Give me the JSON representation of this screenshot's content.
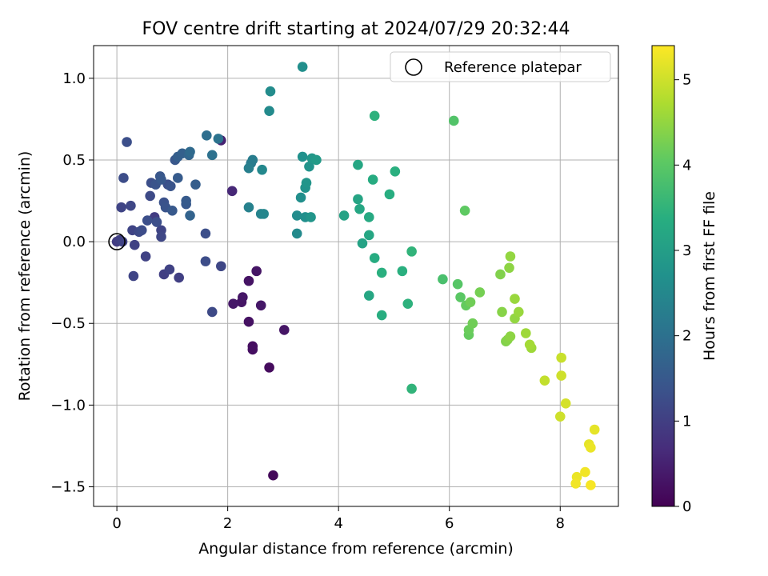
{
  "chart_data": {
    "type": "scatter",
    "title": "FOV centre drift starting at 2024/07/29 20:32:44",
    "xlabel": "Angular distance from reference (arcmin)",
    "ylabel": "Rotation from reference (arcmin)",
    "xlim": [
      -0.42,
      9.05
    ],
    "ylim": [
      -1.62,
      1.2
    ],
    "xticks": [
      0,
      2,
      4,
      6,
      8
    ],
    "xtick_labels": [
      "0",
      "2",
      "4",
      "6",
      "8"
    ],
    "yticks": [
      -1.5,
      -1.0,
      -0.5,
      0.0,
      0.5,
      1.0
    ],
    "ytick_labels": [
      "−1.5",
      "−1.0",
      "−0.5",
      "0.0",
      "0.5",
      "1.0"
    ],
    "grid": true,
    "legend": {
      "location": "upper right",
      "entries": [
        "Reference platepar"
      ]
    },
    "reference_point": {
      "x": 0,
      "y": 0,
      "label": "Reference platepar"
    },
    "colorbar": {
      "label": "Hours from first FF file",
      "colormap": "viridis",
      "range": [
        0,
        5.4
      ],
      "ticks": [
        0,
        1,
        2,
        3,
        4,
        5
      ],
      "tick_labels": [
        "0",
        "1",
        "2",
        "3",
        "4",
        "5"
      ]
    },
    "points": [
      {
        "x": 2.1,
        "y": -0.38,
        "c": 0.35
      },
      {
        "x": 2.25,
        "y": -0.37,
        "c": 0.3
      },
      {
        "x": 2.27,
        "y": -0.34,
        "c": 0.32
      },
      {
        "x": 2.38,
        "y": -0.24,
        "c": 0.28
      },
      {
        "x": 2.52,
        "y": -0.18,
        "c": 0.3
      },
      {
        "x": 2.6,
        "y": -0.39,
        "c": 0.33
      },
      {
        "x": 2.38,
        "y": -0.49,
        "c": 0.25
      },
      {
        "x": 2.45,
        "y": -0.64,
        "c": 0.2
      },
      {
        "x": 2.45,
        "y": -0.66,
        "c": 0.22
      },
      {
        "x": 2.75,
        "y": -0.77,
        "c": 0.15
      },
      {
        "x": 3.02,
        "y": -0.54,
        "c": 0.3
      },
      {
        "x": 2.82,
        "y": -1.43,
        "c": 0.1
      },
      {
        "x": 1.88,
        "y": 0.62,
        "c": 0.5
      },
      {
        "x": 2.08,
        "y": 0.31,
        "c": 0.6
      },
      {
        "x": 0.0,
        "y": 0.0,
        "c": 0.95
      },
      {
        "x": 0.05,
        "y": 0.01,
        "c": 1.0
      },
      {
        "x": 0.1,
        "y": 0.0,
        "c": 1.05
      },
      {
        "x": 0.08,
        "y": 0.21,
        "c": 1.1
      },
      {
        "x": 0.12,
        "y": 0.39,
        "c": 1.25
      },
      {
        "x": 0.18,
        "y": 0.61,
        "c": 1.3
      },
      {
        "x": 0.25,
        "y": 0.22,
        "c": 1.15
      },
      {
        "x": 0.28,
        "y": 0.07,
        "c": 1.1
      },
      {
        "x": 0.32,
        "y": -0.02,
        "c": 1.05
      },
      {
        "x": 0.4,
        "y": 0.06,
        "c": 1.2
      },
      {
        "x": 0.45,
        "y": 0.07,
        "c": 1.25
      },
      {
        "x": 0.3,
        "y": -0.21,
        "c": 1.1
      },
      {
        "x": 0.52,
        "y": -0.09,
        "c": 1.05
      },
      {
        "x": 0.55,
        "y": 0.13,
        "c": 1.3
      },
      {
        "x": 0.6,
        "y": 0.28,
        "c": 1.2
      },
      {
        "x": 0.62,
        "y": 0.36,
        "c": 1.3
      },
      {
        "x": 0.68,
        "y": 0.15,
        "c": 0.95
      },
      {
        "x": 0.7,
        "y": 0.35,
        "c": 1.4
      },
      {
        "x": 0.72,
        "y": 0.12,
        "c": 1.3
      },
      {
        "x": 0.78,
        "y": 0.4,
        "c": 1.45
      },
      {
        "x": 0.8,
        "y": 0.38,
        "c": 1.5
      },
      {
        "x": 0.8,
        "y": 0.03,
        "c": 1.15
      },
      {
        "x": 0.8,
        "y": 0.07,
        "c": 1.1
      },
      {
        "x": 0.85,
        "y": 0.24,
        "c": 1.35
      },
      {
        "x": 0.85,
        "y": -0.2,
        "c": 1.0
      },
      {
        "x": 0.88,
        "y": 0.21,
        "c": 1.4
      },
      {
        "x": 0.92,
        "y": 0.35,
        "c": 1.3
      },
      {
        "x": 0.95,
        "y": -0.17,
        "c": 1.05
      },
      {
        "x": 0.97,
        "y": 0.34,
        "c": 1.4
      },
      {
        "x": 1.0,
        "y": 0.19,
        "c": 1.5
      },
      {
        "x": 1.05,
        "y": 0.5,
        "c": 1.45
      },
      {
        "x": 1.1,
        "y": 0.39,
        "c": 1.55
      },
      {
        "x": 1.1,
        "y": 0.52,
        "c": 1.6
      },
      {
        "x": 1.12,
        "y": -0.22,
        "c": 1.0
      },
      {
        "x": 1.18,
        "y": 0.54,
        "c": 1.65
      },
      {
        "x": 1.25,
        "y": 0.25,
        "c": 1.55
      },
      {
        "x": 1.25,
        "y": 0.23,
        "c": 1.5
      },
      {
        "x": 1.3,
        "y": 0.53,
        "c": 1.75
      },
      {
        "x": 1.32,
        "y": 0.55,
        "c": 1.85
      },
      {
        "x": 1.32,
        "y": 0.16,
        "c": 1.7
      },
      {
        "x": 1.42,
        "y": 0.35,
        "c": 1.6
      },
      {
        "x": 1.6,
        "y": 0.05,
        "c": 1.3
      },
      {
        "x": 1.6,
        "y": -0.12,
        "c": 1.25
      },
      {
        "x": 1.62,
        "y": 0.65,
        "c": 1.95
      },
      {
        "x": 1.72,
        "y": 0.53,
        "c": 2.0
      },
      {
        "x": 1.72,
        "y": -0.43,
        "c": 1.2
      },
      {
        "x": 1.83,
        "y": 0.63,
        "c": 2.05
      },
      {
        "x": 1.88,
        "y": -0.15,
        "c": 1.15
      },
      {
        "x": 2.38,
        "y": 0.45,
        "c": 2.3
      },
      {
        "x": 2.42,
        "y": 0.48,
        "c": 2.2
      },
      {
        "x": 2.45,
        "y": 0.5,
        "c": 2.25
      },
      {
        "x": 2.38,
        "y": 0.21,
        "c": 2.35
      },
      {
        "x": 2.6,
        "y": 0.17,
        "c": 2.4
      },
      {
        "x": 2.65,
        "y": 0.17,
        "c": 2.45
      },
      {
        "x": 2.62,
        "y": 0.44,
        "c": 2.5
      },
      {
        "x": 2.75,
        "y": 0.8,
        "c": 2.55
      },
      {
        "x": 2.77,
        "y": 0.92,
        "c": 2.6
      },
      {
        "x": 3.35,
        "y": 1.07,
        "c": 2.65
      },
      {
        "x": 3.25,
        "y": 0.16,
        "c": 2.6
      },
      {
        "x": 3.25,
        "y": 0.05,
        "c": 2.55
      },
      {
        "x": 3.32,
        "y": 0.27,
        "c": 2.65
      },
      {
        "x": 3.35,
        "y": 0.52,
        "c": 2.7
      },
      {
        "x": 3.4,
        "y": 0.15,
        "c": 2.65
      },
      {
        "x": 3.4,
        "y": 0.33,
        "c": 2.75
      },
      {
        "x": 3.42,
        "y": 0.36,
        "c": 2.8
      },
      {
        "x": 3.47,
        "y": 0.46,
        "c": 2.75
      },
      {
        "x": 3.5,
        "y": 0.15,
        "c": 2.8
      },
      {
        "x": 3.52,
        "y": 0.51,
        "c": 2.85
      },
      {
        "x": 3.6,
        "y": 0.5,
        "c": 2.9
      },
      {
        "x": 4.1,
        "y": 0.16,
        "c": 3.1
      },
      {
        "x": 4.35,
        "y": 0.47,
        "c": 3.2
      },
      {
        "x": 4.35,
        "y": 0.26,
        "c": 3.15
      },
      {
        "x": 4.38,
        "y": 0.2,
        "c": 3.2
      },
      {
        "x": 4.43,
        "y": -0.01,
        "c": 3.1
      },
      {
        "x": 4.55,
        "y": 0.04,
        "c": 3.2
      },
      {
        "x": 4.55,
        "y": 0.15,
        "c": 3.25
      },
      {
        "x": 4.62,
        "y": 0.38,
        "c": 3.3
      },
      {
        "x": 4.65,
        "y": 0.77,
        "c": 3.45
      },
      {
        "x": 4.65,
        "y": -0.1,
        "c": 3.3
      },
      {
        "x": 4.55,
        "y": -0.33,
        "c": 3.2
      },
      {
        "x": 4.78,
        "y": -0.19,
        "c": 3.4
      },
      {
        "x": 4.78,
        "y": -0.45,
        "c": 3.35
      },
      {
        "x": 4.92,
        "y": 0.29,
        "c": 3.35
      },
      {
        "x": 5.02,
        "y": 0.43,
        "c": 3.4
      },
      {
        "x": 5.15,
        "y": -0.18,
        "c": 3.4
      },
      {
        "x": 5.25,
        "y": -0.38,
        "c": 3.45
      },
      {
        "x": 5.32,
        "y": -0.06,
        "c": 3.5
      },
      {
        "x": 5.32,
        "y": -0.9,
        "c": 3.5
      },
      {
        "x": 5.88,
        "y": -0.23,
        "c": 3.8
      },
      {
        "x": 6.08,
        "y": 0.74,
        "c": 3.9
      },
      {
        "x": 6.15,
        "y": -0.26,
        "c": 3.95
      },
      {
        "x": 6.2,
        "y": -0.34,
        "c": 4.0
      },
      {
        "x": 6.28,
        "y": 0.19,
        "c": 4.05
      },
      {
        "x": 6.3,
        "y": -0.39,
        "c": 4.1
      },
      {
        "x": 6.35,
        "y": -0.54,
        "c": 4.15
      },
      {
        "x": 6.35,
        "y": -0.57,
        "c": 4.1
      },
      {
        "x": 6.38,
        "y": -0.37,
        "c": 4.2
      },
      {
        "x": 6.42,
        "y": -0.5,
        "c": 4.2
      },
      {
        "x": 6.55,
        "y": -0.31,
        "c": 4.25
      },
      {
        "x": 6.92,
        "y": -0.2,
        "c": 4.35
      },
      {
        "x": 6.95,
        "y": -0.43,
        "c": 4.4
      },
      {
        "x": 7.02,
        "y": -0.61,
        "c": 4.35
      },
      {
        "x": 7.05,
        "y": -0.6,
        "c": 4.4
      },
      {
        "x": 7.08,
        "y": -0.16,
        "c": 4.45
      },
      {
        "x": 7.1,
        "y": -0.09,
        "c": 4.5
      },
      {
        "x": 7.1,
        "y": -0.58,
        "c": 4.45
      },
      {
        "x": 7.18,
        "y": -0.35,
        "c": 4.55
      },
      {
        "x": 7.18,
        "y": -0.47,
        "c": 4.5
      },
      {
        "x": 7.25,
        "y": -0.43,
        "c": 4.55
      },
      {
        "x": 7.38,
        "y": -0.56,
        "c": 4.6
      },
      {
        "x": 7.45,
        "y": -0.63,
        "c": 4.65
      },
      {
        "x": 7.48,
        "y": -0.65,
        "c": 4.6
      },
      {
        "x": 7.72,
        "y": -0.85,
        "c": 4.9
      },
      {
        "x": 8.0,
        "y": -1.07,
        "c": 5.0
      },
      {
        "x": 8.02,
        "y": -0.71,
        "c": 4.95
      },
      {
        "x": 8.02,
        "y": -0.82,
        "c": 5.0
      },
      {
        "x": 8.1,
        "y": -0.99,
        "c": 5.05
      },
      {
        "x": 8.28,
        "y": -1.48,
        "c": 5.3
      },
      {
        "x": 8.3,
        "y": -1.44,
        "c": 5.25
      },
      {
        "x": 8.45,
        "y": -1.41,
        "c": 5.3
      },
      {
        "x": 8.52,
        "y": -1.24,
        "c": 5.2
      },
      {
        "x": 8.55,
        "y": -1.26,
        "c": 5.25
      },
      {
        "x": 8.55,
        "y": -1.49,
        "c": 5.35
      },
      {
        "x": 8.62,
        "y": -1.15,
        "c": 5.2
      }
    ]
  }
}
